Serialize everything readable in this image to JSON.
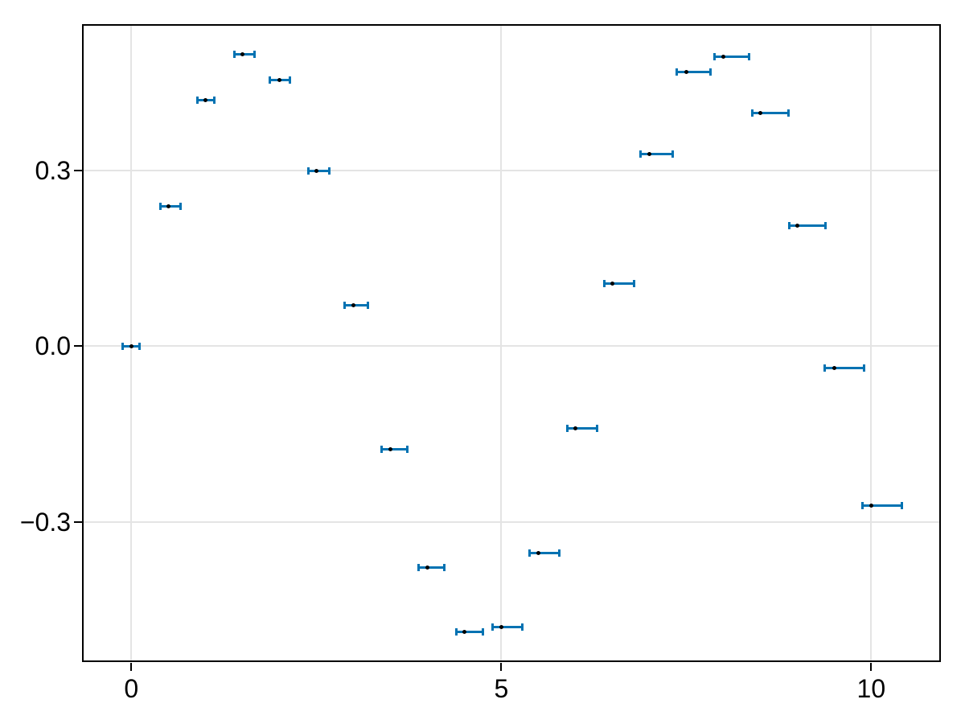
{
  "figure": {
    "background": "#ffffff"
  },
  "chart_data": {
    "type": "scatter",
    "title": "",
    "xlabel": "",
    "ylabel": "",
    "grid": true,
    "legend": false,
    "xlim": [
      -0.645,
      10.92
    ],
    "ylim": [
      -0.537,
      0.548
    ],
    "x_ticks": {
      "values": [
        0,
        5,
        10
      ],
      "labels": [
        "0",
        "5",
        "10"
      ]
    },
    "y_ticks": {
      "values": [
        0.3,
        0.0,
        -0.3
      ],
      "labels": [
        "0.3",
        "0.0",
        "−0.3"
      ]
    },
    "styles": {
      "errorbar_color": "#0072B2",
      "marker_color": "#000000",
      "grid_color": "#e4e4e4",
      "spine_color": "#000000",
      "tick_label_color": "#000000"
    },
    "series": [
      {
        "name": "errorbar-series",
        "marker": "dot",
        "error_direction": "x",
        "points": [
          {
            "x": 0.0,
            "y": 0.0,
            "xerr_minus": 0.115,
            "xerr_plus": 0.11
          },
          {
            "x": 0.5,
            "y": 0.2397,
            "xerr_minus": 0.11,
            "xerr_plus": 0.16
          },
          {
            "x": 1.0,
            "y": 0.4207,
            "xerr_minus": 0.112,
            "xerr_plus": 0.123
          },
          {
            "x": 1.5,
            "y": 0.4987,
            "xerr_minus": 0.112,
            "xerr_plus": 0.16
          },
          {
            "x": 2.0,
            "y": 0.4546,
            "xerr_minus": 0.126,
            "xerr_plus": 0.14
          },
          {
            "x": 2.5,
            "y": 0.2992,
            "xerr_minus": 0.109,
            "xerr_plus": 0.18
          },
          {
            "x": 3.0,
            "y": 0.0706,
            "xerr_minus": 0.12,
            "xerr_plus": 0.2
          },
          {
            "x": 3.5,
            "y": -0.1754,
            "xerr_minus": 0.12,
            "xerr_plus": 0.228
          },
          {
            "x": 4.0,
            "y": -0.3784,
            "xerr_minus": 0.12,
            "xerr_plus": 0.225
          },
          {
            "x": 4.5,
            "y": -0.4888,
            "xerr_minus": 0.109,
            "xerr_plus": 0.247
          },
          {
            "x": 5.0,
            "y": -0.4795,
            "xerr_minus": 0.123,
            "xerr_plus": 0.279
          },
          {
            "x": 5.5,
            "y": -0.3528,
            "xerr_minus": 0.12,
            "xerr_plus": 0.28
          },
          {
            "x": 6.0,
            "y": -0.1397,
            "xerr_minus": 0.109,
            "xerr_plus": 0.29
          },
          {
            "x": 6.5,
            "y": 0.1077,
            "xerr_minus": 0.109,
            "xerr_plus": 0.297
          },
          {
            "x": 7.0,
            "y": 0.3285,
            "xerr_minus": 0.123,
            "xerr_plus": 0.319
          },
          {
            "x": 7.5,
            "y": 0.469,
            "xerr_minus": 0.127,
            "xerr_plus": 0.326
          },
          {
            "x": 8.0,
            "y": 0.4947,
            "xerr_minus": 0.12,
            "xerr_plus": 0.351
          },
          {
            "x": 8.5,
            "y": 0.3992,
            "xerr_minus": 0.109,
            "xerr_plus": 0.38
          },
          {
            "x": 9.0,
            "y": 0.2061,
            "xerr_minus": 0.11,
            "xerr_plus": 0.385
          },
          {
            "x": 9.5,
            "y": -0.0375,
            "xerr_minus": 0.127,
            "xerr_plus": 0.399
          },
          {
            "x": 10.0,
            "y": -0.272,
            "xerr_minus": 0.12,
            "xerr_plus": 0.416
          }
        ]
      }
    ]
  }
}
